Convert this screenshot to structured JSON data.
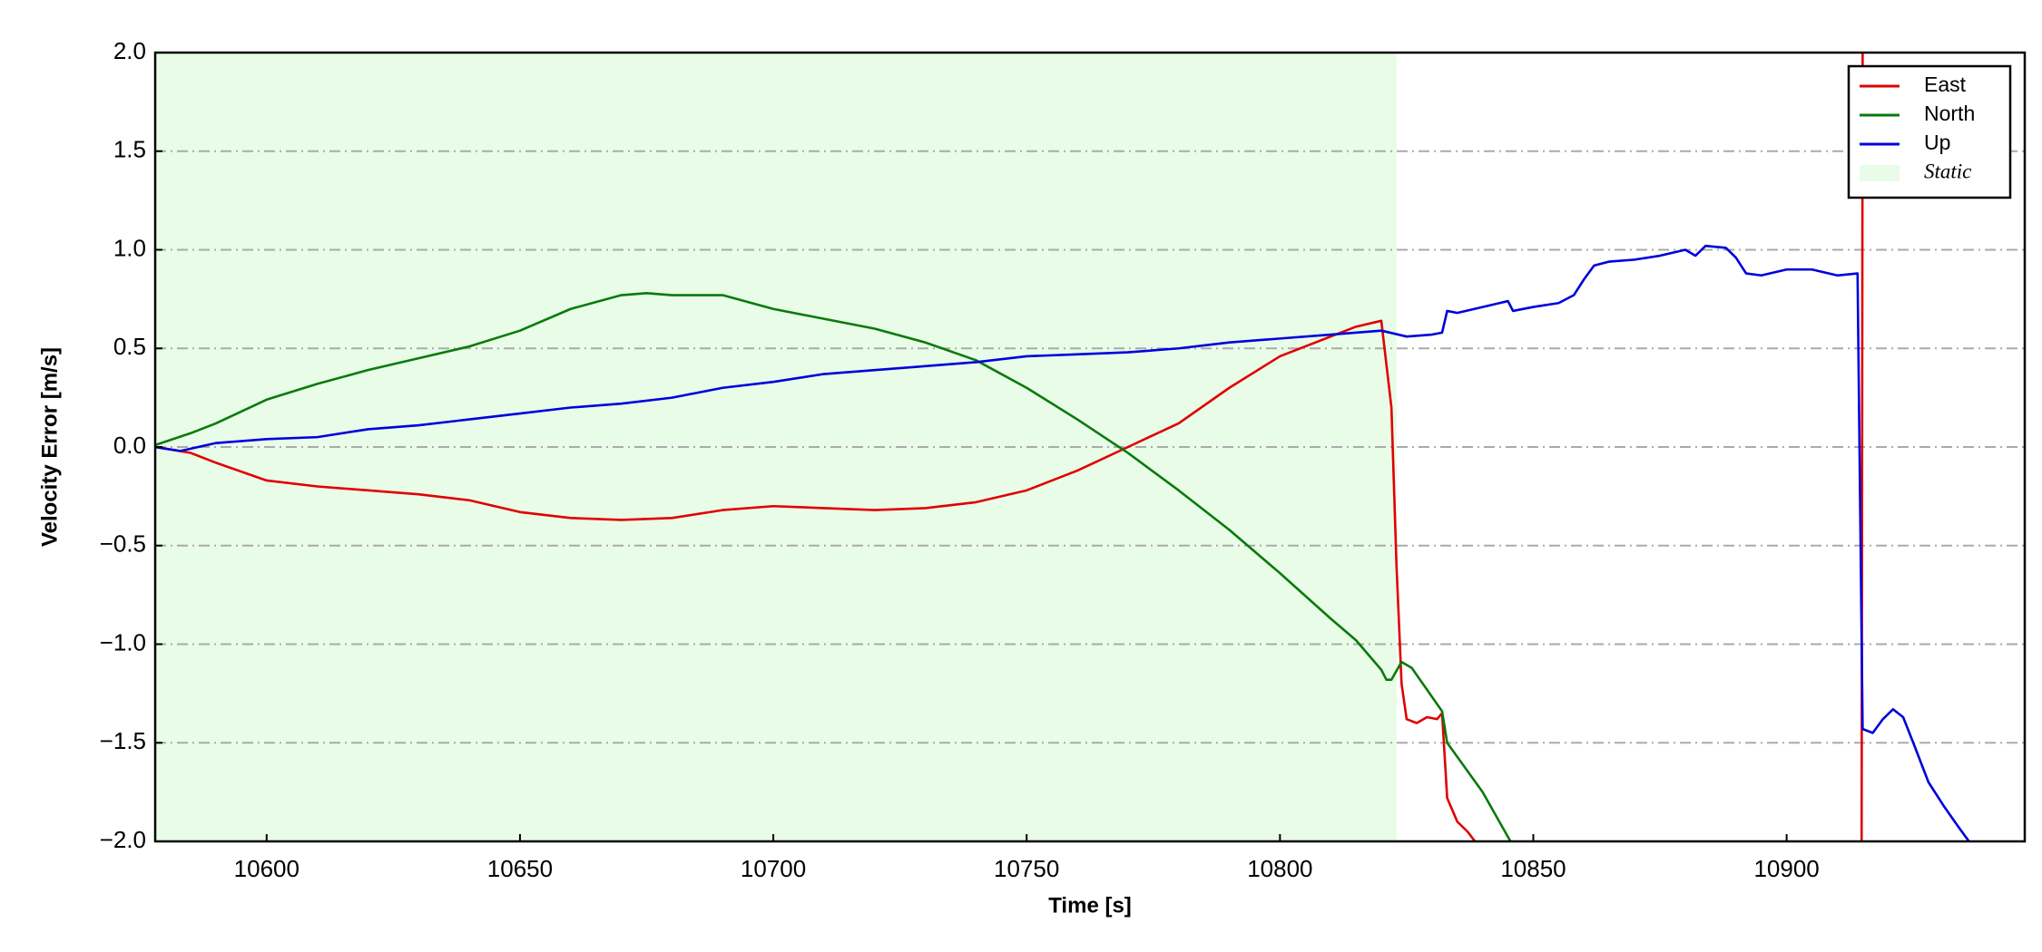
{
  "chart_data": {
    "type": "line",
    "x_label": "Time [s]",
    "y_label": "Velocity Error [m/s]",
    "xlim": [
      10578,
      10947
    ],
    "ylim": [
      -2.0,
      2.0
    ],
    "xticks": [
      10600,
      10650,
      10700,
      10750,
      10800,
      10850,
      10900
    ],
    "yticks": [
      {
        "value": -2.0,
        "label": "−2.0"
      },
      {
        "value": -1.5,
        "label": "−1.5"
      },
      {
        "value": -1.0,
        "label": "−1.0"
      },
      {
        "value": -0.5,
        "label": "−0.5"
      },
      {
        "value": 0.0,
        "label": "0.0"
      },
      {
        "value": 0.5,
        "label": "0.5"
      },
      {
        "value": 1.0,
        "label": "1.0"
      },
      {
        "value": 1.5,
        "label": "1.5"
      },
      {
        "value": 2.0,
        "label": "2.0"
      }
    ],
    "grid": true,
    "legend_position": "upper right",
    "static": {
      "label": "Static",
      "span": [
        10578,
        10823
      ],
      "color": "#e8fce8"
    },
    "series": [
      {
        "name": "East",
        "color": "#e00000",
        "x": [
          10578,
          10585,
          10590,
          10600,
          10610,
          10620,
          10630,
          10640,
          10650,
          10660,
          10670,
          10680,
          10690,
          10700,
          10710,
          10720,
          10730,
          10740,
          10750,
          10760,
          10770,
          10780,
          10790,
          10800,
          10810,
          10815,
          10820,
          10822,
          10823,
          10824,
          10825,
          10827,
          10829,
          10831,
          10832,
          10833,
          10835,
          10837,
          10838.5,
          10870,
          10914.8,
          10915
        ],
        "values": [
          0.0,
          -0.03,
          -0.08,
          -0.17,
          -0.2,
          -0.22,
          -0.24,
          -0.27,
          -0.33,
          -0.36,
          -0.37,
          -0.36,
          -0.32,
          -0.3,
          -0.31,
          -0.32,
          -0.31,
          -0.28,
          -0.22,
          -0.12,
          0.0,
          0.12,
          0.3,
          0.46,
          0.56,
          0.61,
          0.64,
          0.2,
          -0.6,
          -1.2,
          -1.38,
          -1.4,
          -1.37,
          -1.38,
          -1.35,
          -1.78,
          -1.9,
          -1.95,
          -2.0,
          null,
          -2.0,
          2.0
        ]
      },
      {
        "name": "North",
        "color": "#0a7a0a",
        "x": [
          10578,
          10585,
          10590,
          10600,
          10610,
          10620,
          10630,
          10640,
          10650,
          10660,
          10670,
          10675,
          10680,
          10690,
          10700,
          10710,
          10720,
          10730,
          10740,
          10750,
          10760,
          10770,
          10780,
          10790,
          10800,
          10810,
          10815,
          10820,
          10821,
          10822,
          10824,
          10826,
          10832,
          10833,
          10840,
          10845.5
        ],
        "values": [
          0.01,
          0.07,
          0.12,
          0.24,
          0.32,
          0.39,
          0.45,
          0.51,
          0.59,
          0.7,
          0.77,
          0.78,
          0.77,
          0.77,
          0.7,
          0.65,
          0.6,
          0.53,
          0.44,
          0.3,
          0.14,
          -0.03,
          -0.22,
          -0.42,
          -0.64,
          -0.87,
          -0.98,
          -1.13,
          -1.18,
          -1.18,
          -1.09,
          -1.12,
          -1.34,
          -1.5,
          -1.75,
          -2.0
        ]
      },
      {
        "name": "Up",
        "color": "#0000dd",
        "x": [
          10578,
          10583,
          10590,
          10600,
          10610,
          10620,
          10630,
          10640,
          10650,
          10660,
          10670,
          10680,
          10690,
          10700,
          10710,
          10720,
          10730,
          10740,
          10750,
          10760,
          10770,
          10780,
          10790,
          10800,
          10810,
          10820,
          10825,
          10830,
          10832,
          10833,
          10835,
          10840,
          10845,
          10846,
          10850,
          10855,
          10858,
          10860,
          10862,
          10865,
          10870,
          10875,
          10880,
          10882,
          10884,
          10888,
          10890,
          10892,
          10895,
          10900,
          10905,
          10910,
          10914,
          10915,
          10917,
          10919,
          10921,
          10923,
          10925,
          10928,
          10931,
          10934,
          10936
        ],
        "values": [
          0.0,
          -0.02,
          0.02,
          0.04,
          0.05,
          0.09,
          0.11,
          0.14,
          0.17,
          0.2,
          0.22,
          0.25,
          0.3,
          0.33,
          0.37,
          0.39,
          0.41,
          0.43,
          0.46,
          0.47,
          0.48,
          0.5,
          0.53,
          0.55,
          0.57,
          0.59,
          0.56,
          0.57,
          0.58,
          0.69,
          0.68,
          0.71,
          0.74,
          0.69,
          0.71,
          0.73,
          0.77,
          0.85,
          0.92,
          0.94,
          0.95,
          0.97,
          1.0,
          0.97,
          1.02,
          1.01,
          0.96,
          0.88,
          0.87,
          0.9,
          0.9,
          0.87,
          0.88,
          -1.43,
          -1.45,
          -1.38,
          -1.33,
          -1.37,
          -1.5,
          -1.7,
          -1.82,
          -1.93,
          -2.0
        ]
      }
    ]
  }
}
